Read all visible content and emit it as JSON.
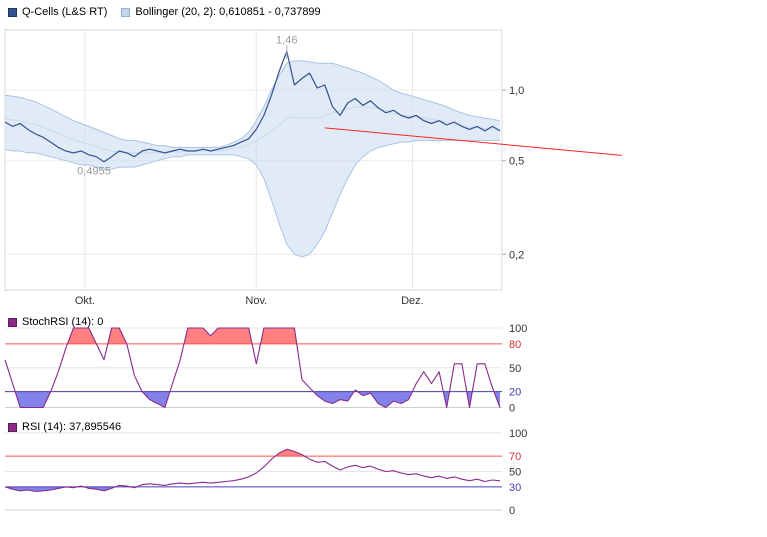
{
  "legend": {
    "main": [
      {
        "label": "Q-Cells (L&S RT)",
        "swatch_color": "#33518f"
      },
      {
        "label": "Bollinger (20, 2): 0,610851 - 0,737899",
        "swatch_color": "#c3d6ec"
      }
    ],
    "stoch": {
      "label": "StochRSI (14): 0",
      "swatch_color": "#8a2b8a"
    },
    "rsi": {
      "label": "RSI (14): 37,895546",
      "swatch_color": "#8a2b8a"
    }
  },
  "chart_data": [
    {
      "type": "line",
      "name": "price",
      "title": "Q-Cells (L&S RT) with Bollinger (20, 2)",
      "y_axis": {
        "scale": "log",
        "range": [
          0.14,
          1.8
        ],
        "ticks": [
          {
            "value": 1.0,
            "label": "1,0"
          },
          {
            "value": 0.5,
            "label": "0,5"
          },
          {
            "value": 0.2,
            "label": "0,2"
          }
        ]
      },
      "x_axis": {
        "ticks": [
          {
            "label": "Okt.",
            "index": 10.5
          },
          {
            "label": "Nov.",
            "index": 33
          },
          {
            "label": "Dez.",
            "index": 53.5
          }
        ]
      },
      "band_fill": "#cdddf1",
      "bollinger_middle_color": "#c9d9ec",
      "series": [
        {
          "name": "Q-Cells (L&S RT)",
          "color": "#33518f",
          "values": [
            0.73,
            0.7,
            0.72,
            0.68,
            0.65,
            0.63,
            0.6,
            0.57,
            0.55,
            0.54,
            0.55,
            0.53,
            0.52,
            0.4955,
            0.52,
            0.55,
            0.54,
            0.52,
            0.55,
            0.56,
            0.55,
            0.54,
            0.55,
            0.56,
            0.55,
            0.55,
            0.56,
            0.55,
            0.56,
            0.57,
            0.58,
            0.6,
            0.62,
            0.68,
            0.78,
            0.95,
            1.2,
            1.46,
            1.05,
            1.12,
            1.18,
            1.02,
            1.05,
            0.85,
            0.78,
            0.88,
            0.92,
            0.86,
            0.9,
            0.84,
            0.8,
            0.82,
            0.78,
            0.76,
            0.78,
            0.74,
            0.72,
            0.74,
            0.71,
            0.73,
            0.7,
            0.68,
            0.7,
            0.67,
            0.7,
            0.67
          ]
        },
        {
          "name": "Bollinger upper",
          "color": "#a9c4e3",
          "values": [
            0.95,
            0.94,
            0.93,
            0.91,
            0.89,
            0.86,
            0.83,
            0.8,
            0.77,
            0.74,
            0.72,
            0.7,
            0.68,
            0.66,
            0.64,
            0.62,
            0.61,
            0.61,
            0.6,
            0.59,
            0.58,
            0.58,
            0.57,
            0.57,
            0.57,
            0.57,
            0.57,
            0.57,
            0.57,
            0.58,
            0.6,
            0.62,
            0.66,
            0.74,
            0.85,
            1.0,
            1.15,
            1.3,
            1.33,
            1.33,
            1.32,
            1.3,
            1.3,
            1.3,
            1.27,
            1.24,
            1.21,
            1.18,
            1.14,
            1.1,
            1.05,
            1.0,
            0.97,
            0.95,
            0.93,
            0.91,
            0.89,
            0.87,
            0.85,
            0.82,
            0.8,
            0.78,
            0.77,
            0.76,
            0.75,
            0.74
          ]
        },
        {
          "name": "Bollinger lower",
          "color": "#a9c4e3",
          "values": [
            0.56,
            0.55,
            0.55,
            0.54,
            0.54,
            0.53,
            0.52,
            0.51,
            0.5,
            0.49,
            0.48,
            0.48,
            0.47,
            0.46,
            0.46,
            0.47,
            0.47,
            0.47,
            0.48,
            0.49,
            0.5,
            0.51,
            0.52,
            0.52,
            0.53,
            0.53,
            0.53,
            0.53,
            0.53,
            0.53,
            0.53,
            0.52,
            0.51,
            0.48,
            0.42,
            0.34,
            0.27,
            0.22,
            0.2,
            0.195,
            0.2,
            0.22,
            0.25,
            0.3,
            0.36,
            0.42,
            0.48,
            0.52,
            0.55,
            0.57,
            0.58,
            0.59,
            0.6,
            0.6,
            0.61,
            0.61,
            0.61,
            0.61,
            0.61,
            0.61,
            0.61,
            0.61,
            0.61,
            0.61,
            0.61,
            0.61
          ]
        }
      ],
      "annotations": [
        {
          "text": "1,46",
          "index": 37,
          "value": 1.46
        },
        {
          "text": "0,4955",
          "index": 13,
          "value": 0.4955
        }
      ],
      "trendline": {
        "color": "#ff2222",
        "from": {
          "index": 42,
          "value": 0.69
        },
        "to": {
          "index": 81,
          "value": 0.527
        }
      }
    },
    {
      "type": "line",
      "name": "stochrsi",
      "title": "StochRSI (14)",
      "current": "0",
      "color": "#8a2b8a",
      "fill_above": "#ff8080",
      "fill_below": "#8282ea",
      "thresholds": {
        "upper": {
          "value": 80,
          "color": "#ff5050"
        },
        "lower": {
          "value": 20,
          "color": "#4040a8"
        }
      },
      "ylim": [
        0,
        100
      ],
      "y_axis": {
        "ticks": [
          {
            "value": 100,
            "label": "100"
          },
          {
            "value": 80,
            "label": "80",
            "color": "#d93030"
          },
          {
            "value": 50,
            "label": "50"
          },
          {
            "value": 20,
            "label": "20",
            "color": "#3c3cb4"
          },
          {
            "value": 0,
            "label": "0"
          }
        ]
      },
      "values": [
        60,
        30,
        0,
        0,
        0,
        0,
        20,
        45,
        75,
        100,
        100,
        100,
        80,
        60,
        100,
        100,
        80,
        40,
        20,
        10,
        5,
        0,
        30,
        60,
        100,
        100,
        100,
        90,
        100,
        100,
        100,
        100,
        100,
        55,
        100,
        100,
        100,
        100,
        100,
        35,
        25,
        15,
        8,
        5,
        10,
        8,
        22,
        15,
        18,
        5,
        0,
        8,
        5,
        10,
        30,
        45,
        30,
        45,
        0,
        55,
        55,
        0,
        55,
        55,
        25,
        0
      ]
    },
    {
      "type": "line",
      "name": "rsi",
      "title": "RSI (14)",
      "current": "37,895546",
      "color": "#8a2b8a",
      "fill_above": "#ff8080",
      "fill_below": "#8282ea",
      "thresholds": {
        "upper": {
          "value": 70,
          "color": "#ff5050"
        },
        "lower": {
          "value": 30,
          "color": "#4a3cb4"
        }
      },
      "ylim": [
        0,
        100
      ],
      "y_axis": {
        "ticks": [
          {
            "value": 100,
            "label": "100"
          },
          {
            "value": 70,
            "label": "70",
            "color": "#d93030"
          },
          {
            "value": 50,
            "label": "50"
          },
          {
            "value": 30,
            "label": "30",
            "color": "#4a3cb4"
          },
          {
            "value": 0,
            "label": "0"
          }
        ]
      },
      "values": [
        30,
        27,
        25,
        26,
        24,
        25,
        26,
        28,
        30,
        29,
        31,
        28,
        27,
        25,
        28,
        32,
        31,
        29,
        33,
        34,
        33,
        32,
        34,
        35,
        34,
        35,
        36,
        35,
        36,
        37,
        38,
        40,
        43,
        48,
        56,
        66,
        74,
        79,
        76,
        72,
        66,
        62,
        63,
        57,
        52,
        56,
        58,
        55,
        57,
        53,
        50,
        51,
        48,
        46,
        47,
        44,
        42,
        44,
        41,
        43,
        40,
        38,
        40,
        37,
        39,
        37.9
      ]
    }
  ]
}
